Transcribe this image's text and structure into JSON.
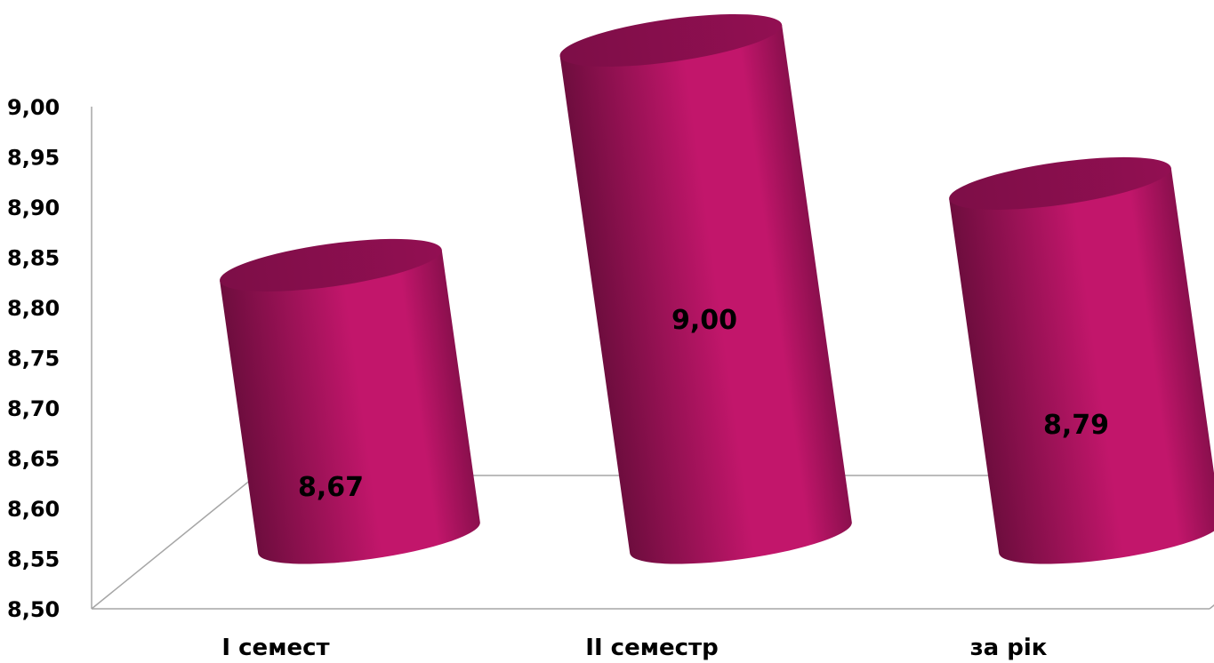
{
  "chart_data": {
    "type": "bar",
    "bar_shape": "cylinder",
    "categories": [
      "I семест",
      "II семестр",
      "за рік"
    ],
    "values": [
      8.67,
      9.0,
      8.79
    ],
    "data_labels": [
      "8,67",
      "9,00",
      "8,79"
    ],
    "title": "",
    "xlabel": "",
    "ylabel": "",
    "ylim": [
      8.5,
      9.0
    ],
    "y_ticks": [
      "8,50",
      "8,55",
      "8,60",
      "8,65",
      "8,70",
      "8,75",
      "8,80",
      "8,85",
      "8,90",
      "8,95",
      "9,00"
    ],
    "grid": false,
    "legend": "none",
    "colors": {
      "bar_light": "#C2166B",
      "bar_dark": "#6E0D3E",
      "bar_top": "#8A0F4D",
      "axis": "#A6A6A6"
    }
  }
}
